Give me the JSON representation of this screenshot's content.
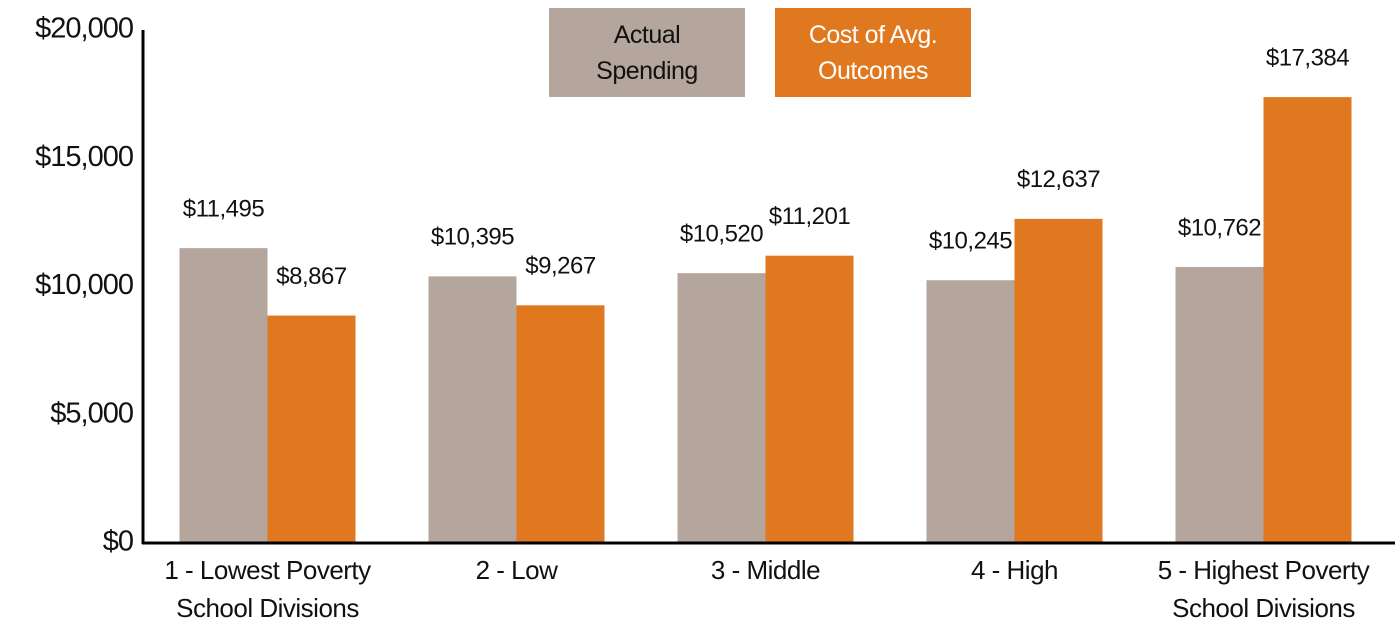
{
  "chart_data": {
    "type": "bar",
    "categories": [
      [
        "1 - Lowest Poverty",
        "School Divisions"
      ],
      [
        "2 - Low"
      ],
      [
        "3 - Middle"
      ],
      [
        "4 - High"
      ],
      [
        "5 - Highest Poverty",
        "School Divisions"
      ]
    ],
    "series": [
      {
        "name": "Actual Spending",
        "color": "#b4a59d",
        "values": [
          11495,
          10395,
          10520,
          10245,
          10762
        ],
        "value_labels": [
          "$11,495",
          "$10,395",
          "$10,520",
          "$10,245",
          "$10,762"
        ]
      },
      {
        "name": "Cost of Avg. Outcomes",
        "color": "#e0781f",
        "values": [
          8867,
          9267,
          11201,
          12637,
          17384
        ],
        "value_labels": [
          "$8,867",
          "$9,267",
          "$11,201",
          "$12,637",
          "$17,384"
        ]
      }
    ],
    "ylim": [
      0,
      20000
    ],
    "yticks": [
      {
        "value": 0,
        "label": "$0"
      },
      {
        "value": 5000,
        "label": "$5,000"
      },
      {
        "value": 10000,
        "label": "$10,000"
      },
      {
        "value": 15000,
        "label": "$15,000"
      },
      {
        "value": 20000,
        "label": "$20,000"
      }
    ],
    "grid": false,
    "legend": "top"
  }
}
